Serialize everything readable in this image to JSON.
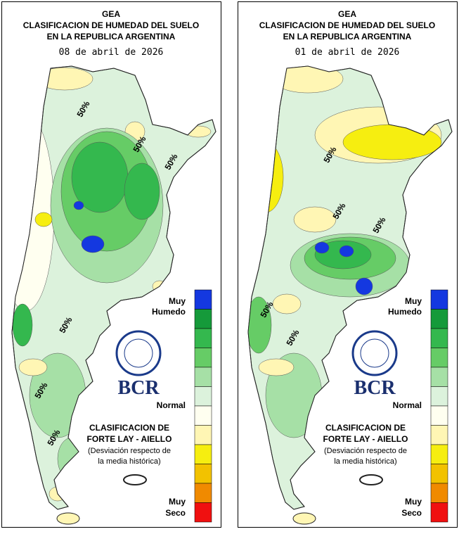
{
  "panels": [
    {
      "header": {
        "org": "GEA",
        "title_line1": "CLASIFICACION DE HUMEDAD DEL SUELO",
        "title_line2": "EN LA REPUBLICA ARGENTINA",
        "date": "08 de abril de 2026"
      },
      "contour_labels": [
        "50%",
        "50%",
        "50%",
        "50%",
        "50%",
        "50%"
      ],
      "legend": {
        "top_label_1": "Muy",
        "top_label_2": "Humedo",
        "middle_label": "Normal",
        "bottom_label_1": "Muy",
        "bottom_label_2": "Seco",
        "colors": [
          "#1438e0",
          "#159a3a",
          "#34b84e",
          "#66cc66",
          "#a6e0a6",
          "#dcf2dc",
          "#fffff0",
          "#fff6b4",
          "#f6ee10",
          "#f2c200",
          "#f08a00",
          "#f01010"
        ]
      },
      "logo": "BCR",
      "method": {
        "line1": "CLASIFICACION DE",
        "line2": "FORTE LAY - AIELLO",
        "note1": "(Desviación respecto de",
        "note2": "la media histórica)"
      }
    },
    {
      "header": {
        "org": "GEA",
        "title_line1": "CLASIFICACION DE HUMEDAD DEL SUELO",
        "title_line2": "EN LA REPUBLICA ARGENTINA",
        "date": "01 de abril de 2026"
      },
      "contour_labels": [
        "50%",
        "50%",
        "50%",
        "50%",
        "50%"
      ],
      "legend": {
        "top_label_1": "Muy",
        "top_label_2": "Humedo",
        "middle_label": "Normal",
        "bottom_label_1": "Muy",
        "bottom_label_2": "Seco",
        "colors": [
          "#1438e0",
          "#159a3a",
          "#34b84e",
          "#66cc66",
          "#a6e0a6",
          "#dcf2dc",
          "#fffff0",
          "#fff6b4",
          "#f6ee10",
          "#f2c200",
          "#f08a00",
          "#f01010"
        ]
      },
      "logo": "BCR",
      "method": {
        "line1": "CLASIFICACION DE",
        "line2": "FORTE LAY - AIELLO",
        "note1": "(Desviación respecto de",
        "note2": "la media histórica)"
      }
    }
  ]
}
